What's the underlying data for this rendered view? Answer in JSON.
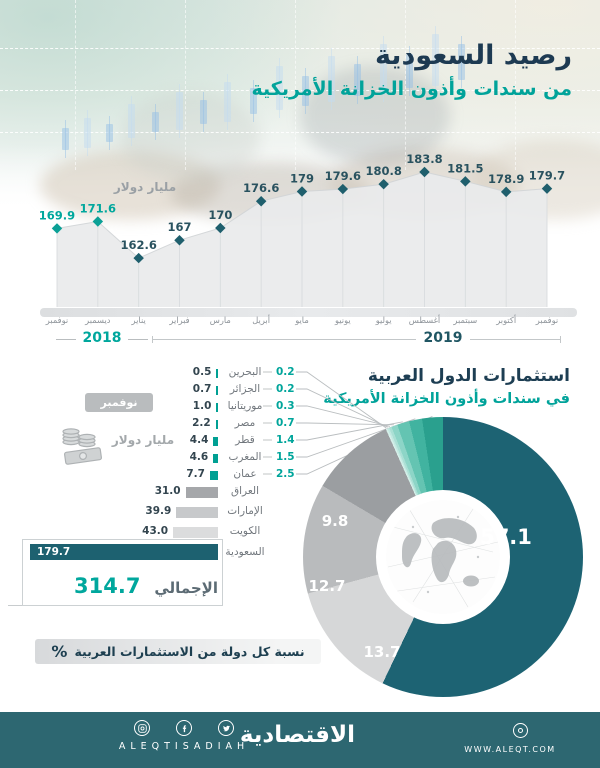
{
  "header": {
    "title_line1": "رصيد السعودية",
    "title_line2": "من سندات وأذون الخزانة الأمريكية"
  },
  "section2": {
    "title_line1": "استثمارات الدول العربية",
    "title_line2": "في سندات وأذون الخزانة الأمريكية",
    "badge": "نوفمبر 2019",
    "unit": "مليار دولار",
    "note": "نسبة كل دولة من الاستثمارات العربية",
    "note_symbol": "%"
  },
  "colors": {
    "navy": "#1d3a52",
    "teal_accent": "#00a79d",
    "dark_teal": "#1d6170",
    "footer_bg": "#2d6771"
  },
  "chart_data": [
    {
      "type": "line",
      "title": "رصيد السعودية من سندات وأذون الخزانة الأمريكية",
      "ylabel": "مليار دولار",
      "x": [
        "نوفمبر",
        "ديسمبر",
        "يناير",
        "فبراير",
        "مارس",
        "أبريل",
        "مايو",
        "يونيو",
        "يوليو",
        "أغسطس",
        "سبتمبر",
        "أكتوبر",
        "نوفمبر"
      ],
      "x_years": [
        "2018",
        "2018",
        "2019",
        "2019",
        "2019",
        "2019",
        "2019",
        "2019",
        "2019",
        "2019",
        "2019",
        "2019",
        "2019"
      ],
      "values": [
        "169.9",
        "171.6",
        "162.6",
        "167",
        "170",
        "176.6",
        "179",
        "179.6",
        "180.8",
        "183.8",
        "181.5",
        "178.9",
        "179.7"
      ],
      "year_labels": [
        "2018",
        "2019"
      ],
      "ylim": [
        160,
        186
      ],
      "grid": false
    },
    {
      "type": "bar",
      "title": "استثمارات الدول العربية في سندات وأذون الخزانة الأمريكية",
      "unit": "مليار دولار",
      "period": "نوفمبر 2019",
      "rows": [
        {
          "country": "البحرين",
          "value": "0.5",
          "percent": "0.2",
          "bar_color": "#00a093"
        },
        {
          "country": "الجزائر",
          "value": "0.7",
          "percent": "0.2",
          "bar_color": "#00a093"
        },
        {
          "country": "موريتانيا",
          "value": "1.0",
          "percent": "0.3",
          "bar_color": "#00a093"
        },
        {
          "country": "مصر",
          "value": "2.2",
          "percent": "0.7",
          "bar_color": "#00a093"
        },
        {
          "country": "قطر",
          "value": "4.4",
          "percent": "1.4",
          "bar_color": "#00a093"
        },
        {
          "country": "المغرب",
          "value": "4.6",
          "percent": "1.5",
          "bar_color": "#00a093"
        },
        {
          "country": "عمان",
          "value": "7.7",
          "percent": "2.5",
          "bar_color": "#00a093"
        },
        {
          "country": "العراق",
          "value": "31.0",
          "percent": null,
          "bar_color": "#a5a7aa"
        },
        {
          "country": "الإمارات",
          "value": "39.9",
          "percent": null,
          "bar_color": "#c7c9cb"
        },
        {
          "country": "الكويت",
          "value": "43.0",
          "percent": null,
          "bar_color": "#dbdcdd"
        },
        {
          "country": "السعودية",
          "value": "179.7",
          "percent": null,
          "bar_color": "#1d6170"
        }
      ],
      "total_label": "الإجمالي",
      "total_value": "314.7"
    },
    {
      "type": "pie",
      "label": "نسبة كل دولة من الاستثمارات العربية %",
      "slices": [
        {
          "name": "السعودية",
          "value": "57.1",
          "color": "#1d6373"
        },
        {
          "name": "الكويت",
          "value": "13.7",
          "color": "#d6d7d8"
        },
        {
          "name": "الإمارات",
          "value": "12.7",
          "color": "#b9bbbd"
        },
        {
          "name": "العراق",
          "value": "9.8",
          "color": "#9b9ea1"
        },
        {
          "name": "البحرين",
          "value": "0.2",
          "color": "#d5efe9"
        },
        {
          "name": "الجزائر",
          "value": "0.2",
          "color": "#c2e9e1"
        },
        {
          "name": "موريتانيا",
          "value": "0.3",
          "color": "#abe0d5"
        },
        {
          "name": "مصر",
          "value": "0.7",
          "color": "#8dd5c7"
        },
        {
          "name": "قطر",
          "value": "1.4",
          "color": "#64c4b2"
        },
        {
          "name": "المغرب",
          "value": "1.5",
          "color": "#41b3a0"
        },
        {
          "name": "عمان",
          "value": "2.5",
          "color": "#2aa08e"
        }
      ]
    }
  ],
  "footer": {
    "brand_latin": "ALEQTISADIAH",
    "brand_arabic": "الاقتصادية",
    "website": "WWW.ALEQT.COM",
    "social_icons": [
      "instagram",
      "facebook",
      "twitter"
    ]
  }
}
